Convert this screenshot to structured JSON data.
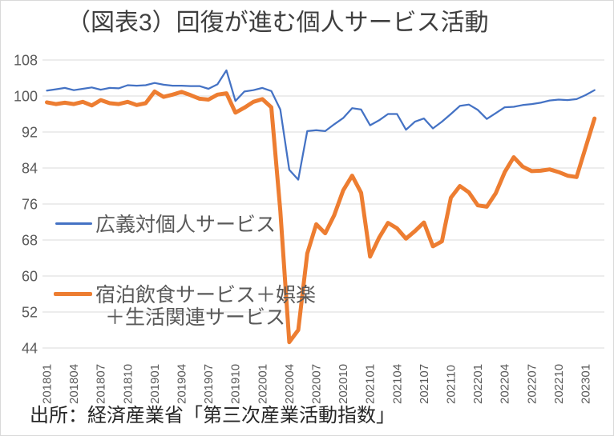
{
  "title": "（図表3）回復が進む個人サービス活動",
  "source": "出所：経済産業省「第三次産業活動指数」",
  "colors": {
    "series_blue": "#4472C4",
    "series_orange": "#ED7D31",
    "gridline": "#D9D9D9",
    "axis_label": "#595959",
    "title_text": "#3F3F3F",
    "source_text": "#262626"
  },
  "legend": {
    "series1_label": "広義対個人サービス",
    "series2_label_line1": "宿泊飲食サービス＋娯楽",
    "series2_label_line2": "＋生活関連サービス"
  },
  "chart_data": {
    "type": "line",
    "title": "（図表3）回復が進む個人サービス活動",
    "xlabel": "",
    "ylabel": "",
    "ylim": [
      44,
      108
    ],
    "y_ticks": [
      44,
      52,
      60,
      68,
      76,
      84,
      92,
      100,
      108
    ],
    "grid": "horizontal",
    "legend_position": "inside-left",
    "x_tick_labels": [
      "201801",
      "201804",
      "201807",
      "201810",
      "201901",
      "201904",
      "201907",
      "201910",
      "202001",
      "202004",
      "202007",
      "202010",
      "202101",
      "202104",
      "202107",
      "202110",
      "202201",
      "202204",
      "202207",
      "202210",
      "202301"
    ],
    "x": [
      "201801",
      "201802",
      "201803",
      "201804",
      "201805",
      "201806",
      "201807",
      "201808",
      "201809",
      "201810",
      "201811",
      "201812",
      "201901",
      "201902",
      "201903",
      "201904",
      "201905",
      "201906",
      "201907",
      "201908",
      "201909",
      "201910",
      "201911",
      "201912",
      "202001",
      "202002",
      "202003",
      "202004",
      "202005",
      "202006",
      "202007",
      "202008",
      "202009",
      "202010",
      "202011",
      "202012",
      "202101",
      "202102",
      "202103",
      "202104",
      "202105",
      "202106",
      "202107",
      "202108",
      "202109",
      "202110",
      "202111",
      "202112",
      "202201",
      "202202",
      "202203",
      "202204",
      "202205",
      "202206",
      "202207",
      "202208",
      "202209",
      "202210",
      "202211",
      "202212",
      "202301",
      "202302"
    ],
    "series": [
      {
        "name": "広義対個人サービス",
        "color": "#4472C4",
        "width": 2.25,
        "values": [
          101.2,
          101.5,
          101.8,
          101.3,
          101.6,
          101.9,
          101.4,
          101.8,
          101.7,
          102.4,
          102.3,
          102.4,
          102.9,
          102.5,
          102.3,
          102.3,
          102.2,
          102.2,
          101.6,
          102.6,
          105.7,
          98.9,
          101.0,
          101.3,
          101.8,
          101.1,
          97.0,
          83.6,
          81.4,
          92.2,
          92.4,
          92.2,
          93.7,
          95.1,
          97.3,
          97.0,
          93.5,
          94.6,
          96.0,
          96.0,
          92.5,
          94.3,
          95.0,
          92.8,
          94.3,
          96.0,
          97.8,
          98.1,
          96.9,
          94.9,
          96.2,
          97.5,
          97.6,
          98.0,
          98.2,
          98.5,
          99.0,
          99.2,
          99.1,
          99.3,
          100.2,
          101.3
        ]
      },
      {
        "name": "宿泊飲食サービス＋娯楽＋生活関連サービス",
        "color": "#ED7D31",
        "width": 5,
        "values": [
          98.6,
          98.2,
          98.5,
          98.2,
          98.7,
          97.9,
          99.1,
          98.4,
          98.2,
          98.7,
          98.0,
          98.4,
          101.0,
          99.8,
          100.3,
          100.9,
          100.2,
          99.4,
          99.2,
          100.3,
          100.6,
          96.3,
          97.4,
          98.7,
          99.3,
          97.5,
          74.5,
          45.3,
          48.0,
          65.0,
          71.5,
          69.5,
          73.5,
          79.0,
          82.3,
          78.5,
          64.3,
          68.5,
          71.8,
          70.6,
          68.3,
          70.0,
          71.9,
          66.6,
          67.7,
          77.4,
          80.0,
          78.6,
          75.7,
          75.4,
          78.4,
          83.1,
          86.4,
          84.3,
          83.3,
          83.4,
          83.7,
          83.1,
          82.3,
          82.0,
          88.5,
          95.0
        ]
      }
    ]
  }
}
